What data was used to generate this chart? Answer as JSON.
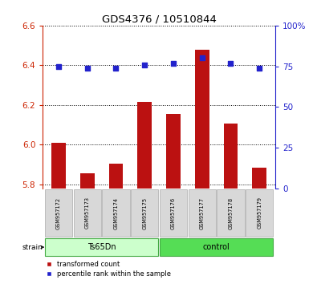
{
  "title": "GDS4376 / 10510844",
  "categories": [
    "GSM957172",
    "GSM957173",
    "GSM957174",
    "GSM957175",
    "GSM957176",
    "GSM957177",
    "GSM957178",
    "GSM957179"
  ],
  "red_values": [
    6.01,
    5.855,
    5.905,
    6.215,
    6.155,
    6.48,
    6.105,
    5.885
  ],
  "blue_values": [
    75,
    74,
    74,
    76,
    77,
    80,
    77,
    74
  ],
  "ylim_left": [
    5.78,
    6.6
  ],
  "ylim_right": [
    0,
    100
  ],
  "yticks_left": [
    5.8,
    6.0,
    6.2,
    6.4,
    6.6
  ],
  "yticks_right": [
    0,
    25,
    50,
    75,
    100
  ],
  "bar_color": "#bb1111",
  "dot_color": "#2222cc",
  "axis_left_color": "#cc2200",
  "axis_right_color": "#2200cc",
  "group1_label": "Ts65Dn",
  "group2_label": "control",
  "group1_color": "#ccffcc",
  "group2_color": "#55dd55",
  "strain_label": "strain",
  "legend_red": "transformed count",
  "legend_blue": "percentile rank within the sample",
  "bar_width": 0.5,
  "baseline": 5.78,
  "bg_color": "#f0f0f0"
}
